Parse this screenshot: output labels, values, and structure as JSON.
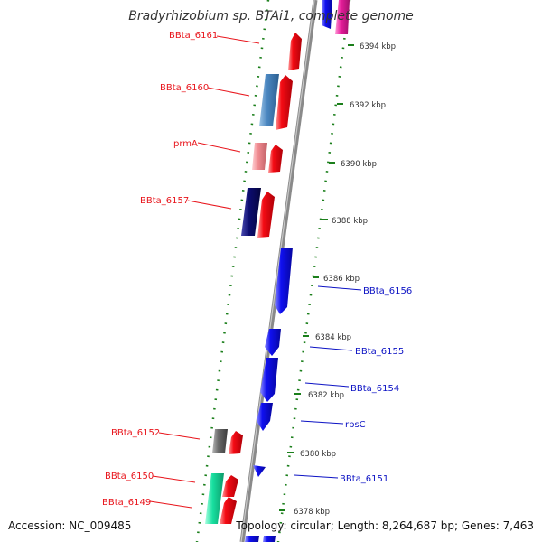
{
  "title": "Bradyrhizobium sp. BTAi1, complete genome",
  "accession": "Accession: NC_009485",
  "topology": "Topology: circular; Length: 8,264,687 bp; Genes: 7,463",
  "colors": {
    "forward": "#f40b14",
    "reverse": "#1010f0",
    "label_forward": "#e8141b",
    "label_reverse": "#0c12c4",
    "dotted_guide": "#1b7f1b",
    "backbone": "#8a8a8a"
  },
  "tick_labels": [
    "6394 kbp",
    "6392 kbp",
    "6390 kbp",
    "6388 kbp",
    "6386 kbp",
    "6384 kbp",
    "6382 kbp",
    "6380 kbp",
    "6378 kbp"
  ],
  "forward_genes": [
    {
      "name": "BBta_6161",
      "label": "BBta_6161",
      "color": "#f40b14"
    },
    {
      "name": "BBta_6160",
      "label": "BBta_6160",
      "color": "#f40b14"
    },
    {
      "name": "prmA",
      "label": "prmA",
      "color": "#f40b14"
    },
    {
      "name": "BBta_6157",
      "label": "BBta_6157",
      "color": "#f40b14"
    },
    {
      "name": "BBta_6152",
      "label": "BBta_6152",
      "color": "#f40b14"
    },
    {
      "name": "BBta_6150",
      "label": "BBta_6150",
      "color": "#f40b14"
    },
    {
      "name": "BBta_6149",
      "label": "BBta_6149",
      "color": "#f40b14"
    }
  ],
  "reverse_genes": [
    {
      "name": "BBta_6156",
      "label": "BBta_6156",
      "color": "#1010f0"
    },
    {
      "name": "BBta_6155",
      "label": "BBta_6155",
      "color": "#1010f0"
    },
    {
      "name": "BBta_6154",
      "label": "BBta_6154",
      "color": "#1010f0"
    },
    {
      "name": "rbsC",
      "label": "rbsC",
      "color": "#1010f0"
    },
    {
      "name": "BBta_6151",
      "label": "BBta_6151",
      "color": "#1010f0"
    }
  ],
  "category_blocks": [
    {
      "name": "cog-block-6160",
      "color": "#4a86c0"
    },
    {
      "name": "cog-block-prmA",
      "color": "#f08a90"
    },
    {
      "name": "cog-block-6157",
      "color": "#0c0c70"
    },
    {
      "name": "cog-block-6152",
      "color": "#6a6a6a"
    },
    {
      "name": "cog-block-6150",
      "color": "#18e0a0"
    }
  ]
}
